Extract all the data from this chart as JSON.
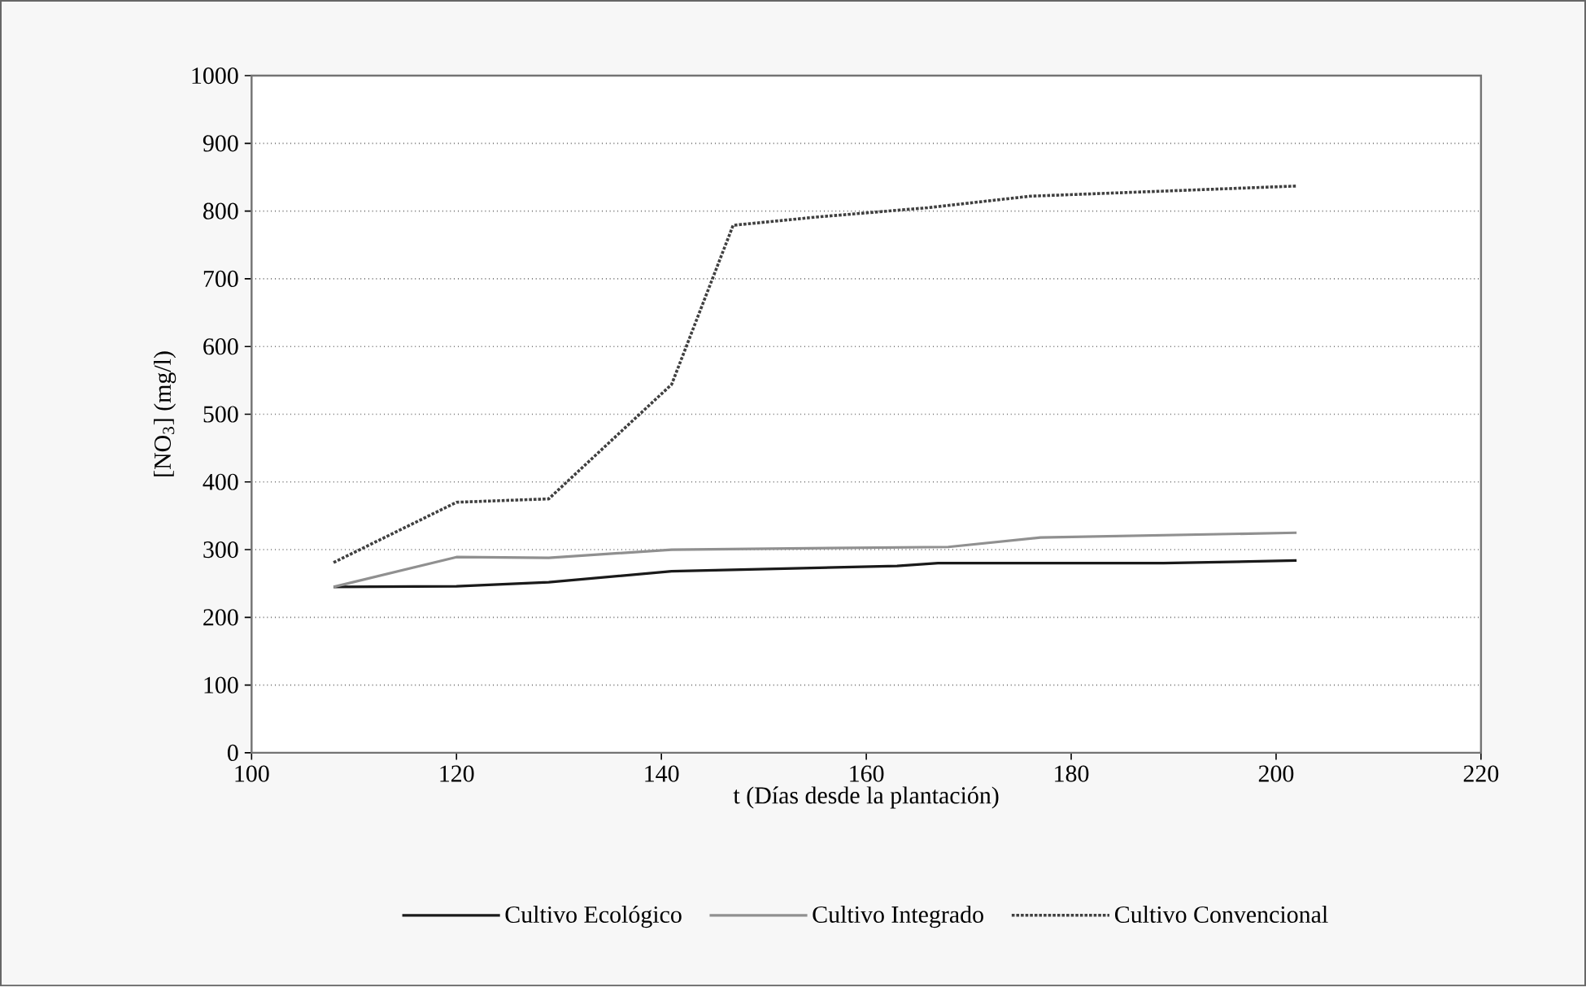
{
  "chart_data": {
    "type": "line",
    "xlabel": "t (Días desde la plantación)",
    "ylabel": "[NO$_{3}$] (mg/l)",
    "xlim": [
      100,
      220
    ],
    "xticks": [
      100,
      120,
      140,
      160,
      180,
      200,
      220
    ],
    "ylim": [
      0,
      1000
    ],
    "yticks": [
      0,
      100,
      200,
      300,
      400,
      500,
      600,
      700,
      800,
      900,
      1000
    ],
    "grid": "y",
    "legend": "bottom",
    "marker": "none",
    "series": [
      {
        "name": "Cultivo Ecológico",
        "color": "#1a1a1a",
        "line_style": "solid",
        "x": [
          108,
          120,
          129,
          141,
          163,
          167,
          189,
          202
        ],
        "values": [
          245,
          246,
          252,
          268,
          276,
          280,
          280,
          284
        ]
      },
      {
        "name": "Cultivo Integrado",
        "color": "#909090",
        "line_style": "solid",
        "x": [
          108,
          120,
          129,
          141,
          168,
          177,
          202
        ],
        "values": [
          245,
          289,
          288,
          300,
          304,
          318,
          325
        ]
      },
      {
        "name": "Cultivo Convencional",
        "color": "#404040",
        "line_style": "dotted",
        "x": [
          108,
          120,
          129,
          141,
          147,
          155,
          166,
          176,
          202
        ],
        "values": [
          281,
          370,
          375,
          544,
          779,
          791,
          805,
          822,
          837
        ]
      }
    ]
  }
}
